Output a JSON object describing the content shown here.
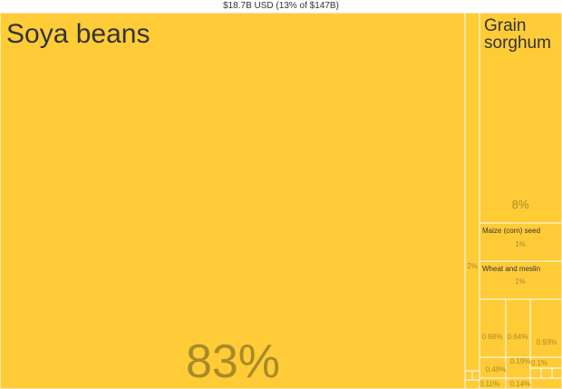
{
  "header": {
    "total_text": "$18.7B USD (13% of $147B)"
  },
  "colors": {
    "tile_fill": "#ffcc38",
    "label_text": "#333333",
    "percent_text": "#a88a28",
    "border": "#ffffff"
  },
  "chart_data": {
    "type": "treemap",
    "title": "$18.7B USD (13% of $147B)",
    "items": [
      {
        "name": "Soya beans",
        "share": 83,
        "share_label": "83%"
      },
      {
        "name": "",
        "share": 2,
        "share_label": "2%"
      },
      {
        "name": "Grain sorghum",
        "share": 8,
        "share_label": "8%"
      },
      {
        "name": "Maize (corn) seed",
        "share": 1,
        "share_label": "1%"
      },
      {
        "name": "Wheat and meslin",
        "share": 1,
        "share_label": "1%"
      },
      {
        "name": "",
        "share": 0.68,
        "share_label": "0.68%"
      },
      {
        "name": "",
        "share": 0.64,
        "share_label": "0.64%"
      },
      {
        "name": "",
        "share": 0.93,
        "share_label": "0.93%"
      },
      {
        "name": "",
        "share": 0.1,
        "share_label": "0.1%"
      },
      {
        "name": "",
        "share": 0.19,
        "share_label": "0.19%"
      },
      {
        "name": "",
        "share": 0.49,
        "share_label": "0.49%"
      },
      {
        "name": "",
        "share": 0.11,
        "share_label": "0.11%"
      },
      {
        "name": "",
        "share": 0.14,
        "share_label": "0.14%"
      }
    ]
  }
}
